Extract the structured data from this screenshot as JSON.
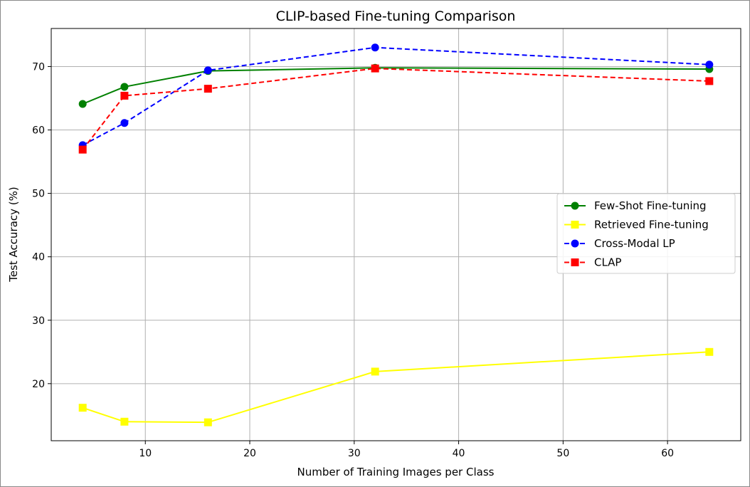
{
  "chart_data": {
    "type": "line",
    "title": "CLIP-based Fine-tuning Comparison",
    "xlabel": "Number of Training Images per Class",
    "ylabel": "Test Accuracy (%)",
    "xlim": [
      0.99,
      67.01
    ],
    "ylim": [
      11.0,
      76.0
    ],
    "x_ticks": [
      10,
      20,
      30,
      40,
      50,
      60
    ],
    "y_ticks": [
      20,
      30,
      40,
      50,
      60,
      70
    ],
    "grid": true,
    "legend_position": "center-right",
    "x": [
      4,
      8,
      16,
      32,
      64
    ],
    "series": [
      {
        "name": "Few-Shot Fine-tuning",
        "values": [
          64.1,
          66.8,
          69.3,
          69.8,
          69.6
        ],
        "color": "#008000",
        "linestyle": "solid",
        "marker": "circle"
      },
      {
        "name": "Retrieved Fine-tuning",
        "values": [
          16.2,
          14.0,
          13.9,
          21.9,
          25.0
        ],
        "color": "#ffff00",
        "linestyle": "solid",
        "marker": "square"
      },
      {
        "name": "Cross-Modal LP",
        "values": [
          57.6,
          61.1,
          69.4,
          73.0,
          70.3
        ],
        "color": "#0000ff",
        "linestyle": "dashed",
        "marker": "circle"
      },
      {
        "name": "CLAP",
        "values": [
          56.9,
          65.4,
          66.5,
          69.7,
          67.7
        ],
        "color": "#ff0000",
        "linestyle": "dashed",
        "marker": "square"
      }
    ]
  }
}
